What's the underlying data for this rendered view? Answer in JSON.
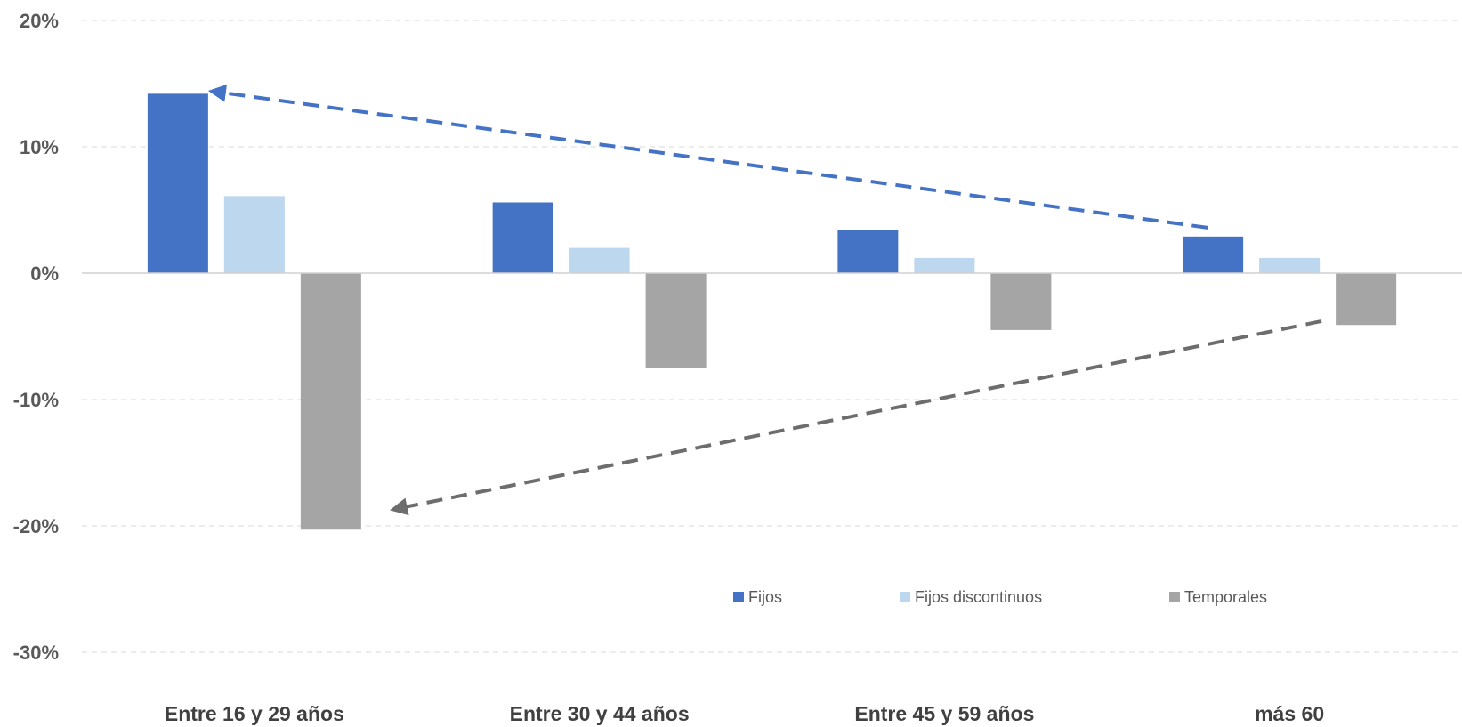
{
  "chart_data": {
    "type": "bar",
    "categories": [
      "Entre 16 y 29 años",
      "Entre 30 y 44 años",
      "Entre 45 y 59 años",
      "más 60"
    ],
    "series": [
      {
        "name": "Fijos",
        "color": "#4472c4",
        "values": [
          14.2,
          5.6,
          3.4,
          2.9
        ]
      },
      {
        "name": "Fijos discontinuos",
        "color": "#bdd7ee",
        "values": [
          6.1,
          2.0,
          1.2,
          1.2
        ]
      },
      {
        "name": "Temporales",
        "color": "#a5a5a5",
        "values": [
          -20.3,
          -7.5,
          -4.5,
          -4.1
        ]
      }
    ],
    "ylim": [
      -30,
      20
    ],
    "yticks": [
      20,
      10,
      0,
      -10,
      -20,
      -30
    ],
    "ytick_labels": [
      "20%",
      "10%",
      "0%",
      "-10%",
      "-20%",
      "-30%"
    ],
    "grid": true,
    "legend_position": "lower-right",
    "annotations": [
      {
        "type": "dashed-arrow",
        "color": "#4472c4",
        "from": {
          "category": "más 60",
          "value": 3.6
        },
        "to": {
          "category": "Entre 16 y 29 años",
          "value": 14.4
        }
      },
      {
        "type": "dashed-arrow",
        "color": "#6d6d6d",
        "from": {
          "category": "más 60",
          "value": -3.8
        },
        "to": {
          "category": "Entre 16 y 29 años",
          "value": -18.7
        }
      }
    ]
  }
}
